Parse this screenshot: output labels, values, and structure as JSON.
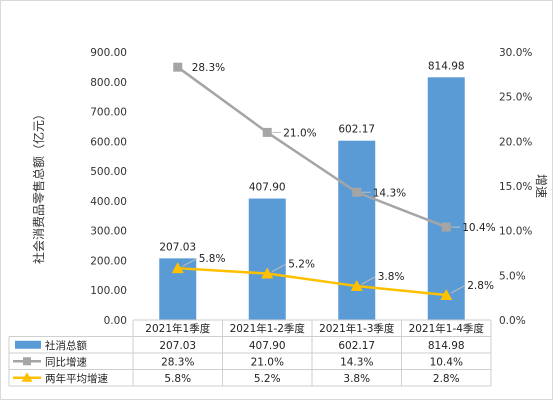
{
  "chart_data": {
    "type": "bar",
    "categories": [
      "2021年1季度",
      "2021年1-2季度",
      "2021年1-3季度",
      "2021年1-4季度"
    ],
    "ylabel": "社会消费品零售总额（亿元）",
    "y2label": "增速",
    "ylim": [
      0,
      900
    ],
    "y2lim": [
      0,
      30
    ],
    "yticks": [
      "0.00",
      "100.00",
      "200.00",
      "300.00",
      "400.00",
      "500.00",
      "600.00",
      "700.00",
      "800.00",
      "900.00"
    ],
    "y2ticks": [
      "0.0%",
      "5.0%",
      "10.0%",
      "15.0%",
      "20.0%",
      "25.0%",
      "30.0%"
    ],
    "grid": false,
    "legend": "data-table-bottom",
    "series": [
      {
        "name": "社消总额",
        "kind": "bar",
        "axis": "left",
        "color": "#5B9BD5",
        "values": [
          207.03,
          407.9,
          602.17,
          814.98
        ],
        "labels": [
          "207.03",
          "407.90",
          "602.17",
          "814.98"
        ]
      },
      {
        "name": "同比增速",
        "kind": "line",
        "axis": "right",
        "color": "#A5A5A5",
        "marker": "square",
        "values": [
          28.3,
          21.0,
          14.3,
          10.4
        ],
        "labels": [
          "28.3%",
          "21.0%",
          "14.3%",
          "10.4%"
        ]
      },
      {
        "name": "两年平均增速",
        "kind": "line",
        "axis": "right",
        "color": "#FFC000",
        "marker": "triangle",
        "values": [
          5.8,
          5.2,
          3.8,
          2.8
        ],
        "labels": [
          "5.8%",
          "5.2%",
          "3.8%",
          "2.8%"
        ]
      }
    ]
  }
}
